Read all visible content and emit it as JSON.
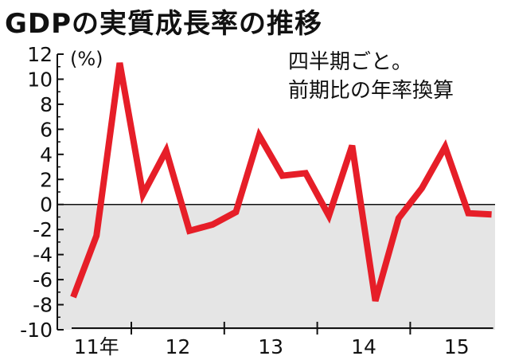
{
  "header": {
    "title": "GDPの実質成長率の推移"
  },
  "note": {
    "line1": "四半期ごと。",
    "line2": "前期比の年率換算"
  },
  "colors": {
    "line": "#e61e28",
    "negative_area": "#e5e5e5",
    "axis": "#111111"
  },
  "chart_data": {
    "type": "line",
    "title": "GDPの実質成長率の推移",
    "unit_label": "(%)",
    "ylim": [
      -10,
      12
    ],
    "y_ticks": [
      12,
      10,
      8,
      6,
      4,
      2,
      0,
      -2,
      -4,
      -6,
      -8,
      -10
    ],
    "y_tick_labels": [
      "12",
      "10",
      "8",
      "6",
      "4",
      "2",
      "0",
      "-2",
      "-4",
      "-6",
      "-8",
      "-10"
    ],
    "x_group_labels": [
      "11年",
      "12",
      "13",
      "14",
      "15"
    ],
    "grid": false,
    "zero_line": true,
    "negative_region_shaded": true,
    "series": [
      {
        "values": [
          -7.4,
          -2.5,
          11.3,
          0.8,
          4.3,
          -2.1,
          -1.6,
          -0.6,
          5.5,
          2.3,
          2.5,
          -0.9,
          4.7,
          -7.7,
          -1.1,
          1.3,
          4.6,
          -0.7,
          -0.8
        ]
      }
    ]
  }
}
